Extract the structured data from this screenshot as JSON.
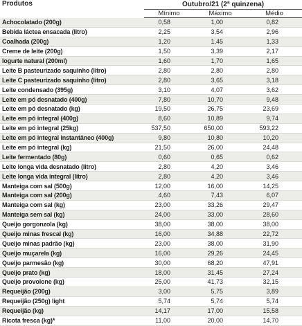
{
  "table": {
    "header": {
      "product": "Produtos",
      "period": "Outubro/21 (2ª quinzena)",
      "columns": [
        "Mínimo",
        "Máximo",
        "Médio"
      ]
    },
    "rows": [
      [
        "Achocolatado (200g)",
        "0,58",
        "1,00",
        "0,82"
      ],
      [
        "Bebida láctea ensacada (litro)",
        "2,25",
        "3,54",
        "2,96"
      ],
      [
        "Coalhada (200g)",
        "1,20",
        "1,45",
        "1,33"
      ],
      [
        "Creme de leite (200g)",
        "1,50",
        "3,39",
        "2,17"
      ],
      [
        "Iogurte natural (200ml)",
        "1,60",
        "1,70",
        "1,65"
      ],
      [
        "Leite B pasteurizado saquinho (litro)",
        "2,80",
        "2,80",
        "2,80"
      ],
      [
        "Leite C pasteurizado saquinho (litro)",
        "2,80",
        "3,65",
        "3,18"
      ],
      [
        "Leite condensado (395g)",
        "3,10",
        "4,07",
        "3,62"
      ],
      [
        "Leite em pó desnatado (400g)",
        "7,80",
        "10,70",
        "9,48"
      ],
      [
        "Leite em pó desnatado (kg)",
        "19,50",
        "26,75",
        "23,69"
      ],
      [
        "Leite em pó integral (400g)",
        "8,60",
        "10,89",
        "9,74"
      ],
      [
        "Leite em pó integral (25kg)",
        "537,50",
        "650,00",
        "593,22"
      ],
      [
        "Leite em pó integral instantâneo (400g)",
        "9,80",
        "10,80",
        "10,20"
      ],
      [
        "Leite em pó integral (kg)",
        "21,50",
        "26,00",
        "24,48"
      ],
      [
        "Leite fermentado (80g)",
        "0,60",
        "0,65",
        "0,62"
      ],
      [
        "Leite longa vida desnatado (litro)",
        "2,80",
        "4,20",
        "3,46"
      ],
      [
        "Leite longa vida integral (litro)",
        "2,80",
        "4,20",
        "3,46"
      ],
      [
        "Manteiga com sal (500g)",
        "12,00",
        "16,00",
        "14,25"
      ],
      [
        "Manteiga com sal (200g)",
        "4,60",
        "7,43",
        "6,07"
      ],
      [
        "Manteiga com sal (kg)",
        "23,00",
        "33,26",
        "29,47"
      ],
      [
        "Manteiga sem sal (kg)",
        "24,00",
        "33,00",
        "28,60"
      ],
      [
        "Queijo gorgonzola (kg)",
        "38,00",
        "38,00",
        "38,00"
      ],
      [
        "Queijo minas frescal (kg)",
        "16,00",
        "34,88",
        "22,72"
      ],
      [
        "Queijo minas padrão (kg)",
        "23,00",
        "38,00",
        "31,90"
      ],
      [
        "Queijo muçarela (kg)",
        "16,00",
        "29,26",
        "24,45"
      ],
      [
        "Queijo parmesão (kg)",
        "30,00",
        "68,20",
        "47,91"
      ],
      [
        "Queijo prato (kg)",
        "18,00",
        "31,45",
        "27,24"
      ],
      [
        "Queijo provolone (kg)",
        "25,00",
        "41,73",
        "32,15"
      ],
      [
        "Requeijão (200g)",
        "3,00",
        "5,75",
        "3,89"
      ],
      [
        "Requeijão (250g) light",
        "5,74",
        "5,74",
        "5,74"
      ],
      [
        "Requeijão (kg)",
        "14,17",
        "17,00",
        "15,58"
      ],
      [
        "Ricota fresca (kg)*",
        "11,00",
        "20,00",
        "14,70"
      ]
    ]
  }
}
